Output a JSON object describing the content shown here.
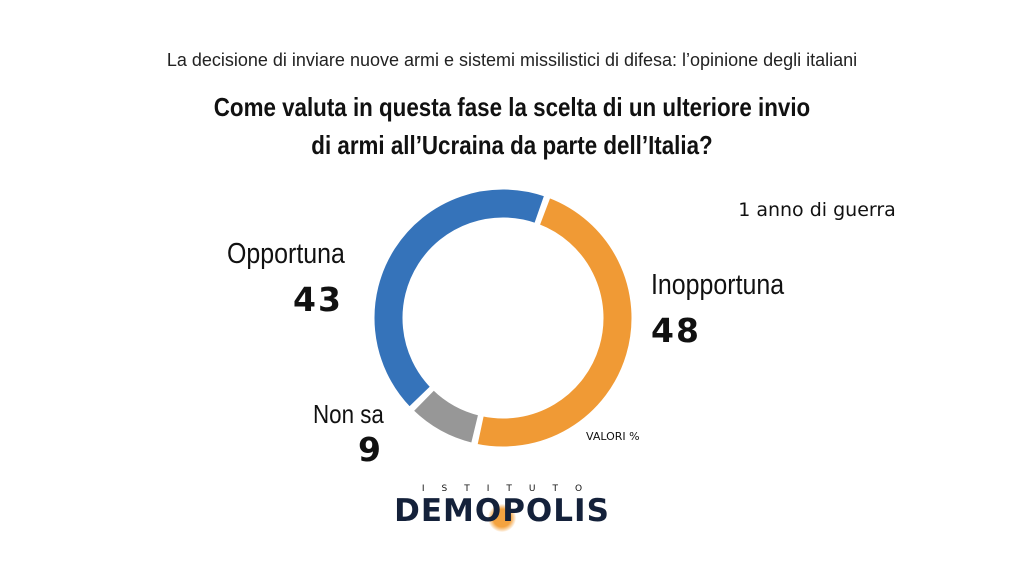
{
  "header": {
    "subtitle": "La decisione di inviare nuove armi e sistemi missilistici di difesa: l’opinione degli italiani",
    "question_line1": "Come valuta in questa fase la scelta di un ulteriore invio",
    "question_line2": "di armi all’Ucraina da parte dell’Italia?"
  },
  "period_label": "1 anno di guerra",
  "unit_note": "VALORI %",
  "chart_data": {
    "type": "pie",
    "variant": "donut",
    "categories": [
      "Inopportuna",
      "Non sa",
      "Opportuna"
    ],
    "values": [
      48,
      9,
      43
    ],
    "colors": [
      "#f09a35",
      "#979797",
      "#3573ba"
    ],
    "labels": {
      "inopportuna": {
        "name": "Inopportuna",
        "value": "48"
      },
      "non_sa": {
        "name": "Non sa",
        "value": "9"
      },
      "opportuna": {
        "name": "Opportuna",
        "value": "43"
      }
    }
  },
  "logo": {
    "top_text": "ISTITUTO",
    "main_text": "DEMOPOLIS"
  }
}
